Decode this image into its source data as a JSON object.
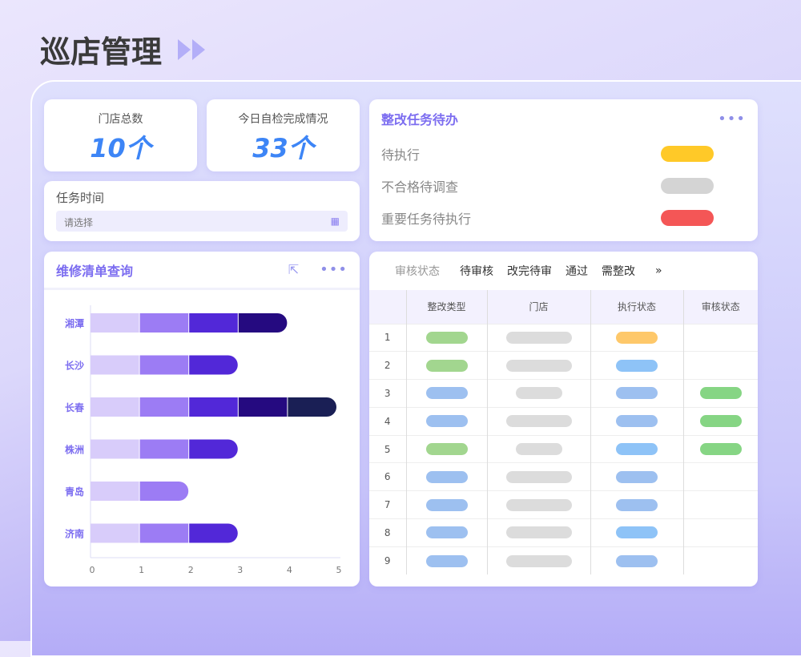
{
  "header": {
    "title": "巡店管理"
  },
  "stats": [
    {
      "label": "门店总数",
      "value": "10个"
    },
    {
      "label": "今日自检完成情况",
      "value": "33个"
    }
  ],
  "task_time": {
    "label": "任务时间",
    "placeholder": "请选择"
  },
  "todo": {
    "title": "整改任务待办",
    "items": [
      {
        "label": "待执行",
        "color": "#ffc928"
      },
      {
        "label": "不合格待调查",
        "color": "#d4d4d4"
      },
      {
        "label": "重要任务待执行",
        "color": "#f45656"
      }
    ]
  },
  "chart_data": {
    "type": "bar",
    "orientation": "horizontal",
    "stacked": true,
    "title": "维修清单查询",
    "categories": [
      "湘潭",
      "长沙",
      "长春",
      "株洲",
      "青岛",
      "济南"
    ],
    "series_colors": [
      "#d8ccfa",
      "#9c7cf4",
      "#5228d8",
      "#250a80",
      "#1a1f55"
    ],
    "values": [
      4,
      3,
      5,
      3,
      2,
      3
    ],
    "segment_value": 1,
    "xlim": [
      0,
      5
    ],
    "xticks": [
      "0",
      "1",
      "2",
      "3",
      "4",
      "5"
    ]
  },
  "review": {
    "filter_label": "审核状态",
    "tabs": [
      "待审核",
      "改完待审",
      "通过",
      "需整改"
    ],
    "more": "»",
    "columns": [
      "",
      "整改类型",
      "门店",
      "执行状态",
      "审核状态"
    ],
    "rows": [
      {
        "n": "1",
        "type": "green",
        "store": "long",
        "exec": "orange",
        "audit": ""
      },
      {
        "n": "2",
        "type": "green",
        "store": "long",
        "exec": "lightblue",
        "audit": ""
      },
      {
        "n": "3",
        "type": "blue",
        "store": "short",
        "exec": "blue",
        "audit": "green"
      },
      {
        "n": "4",
        "type": "blue",
        "store": "long",
        "exec": "blue",
        "audit": "green"
      },
      {
        "n": "5",
        "type": "green",
        "store": "short",
        "exec": "lightblue",
        "audit": "green"
      },
      {
        "n": "6",
        "type": "blue",
        "store": "long",
        "exec": "blue",
        "audit": ""
      },
      {
        "n": "7",
        "type": "blue",
        "store": "long",
        "exec": "blue",
        "audit": ""
      },
      {
        "n": "8",
        "type": "blue",
        "store": "long",
        "exec": "lightblue",
        "audit": ""
      },
      {
        "n": "9",
        "type": "blue",
        "store": "long",
        "exec": "blue",
        "audit": ""
      }
    ],
    "colors": {
      "green": "#a2d68f",
      "blue": "#9dc0f0",
      "lightblue": "#8ec3f7",
      "orange": "#fec86a",
      "gray": "#dcdcdc",
      "audit_green": "#86d584"
    }
  }
}
